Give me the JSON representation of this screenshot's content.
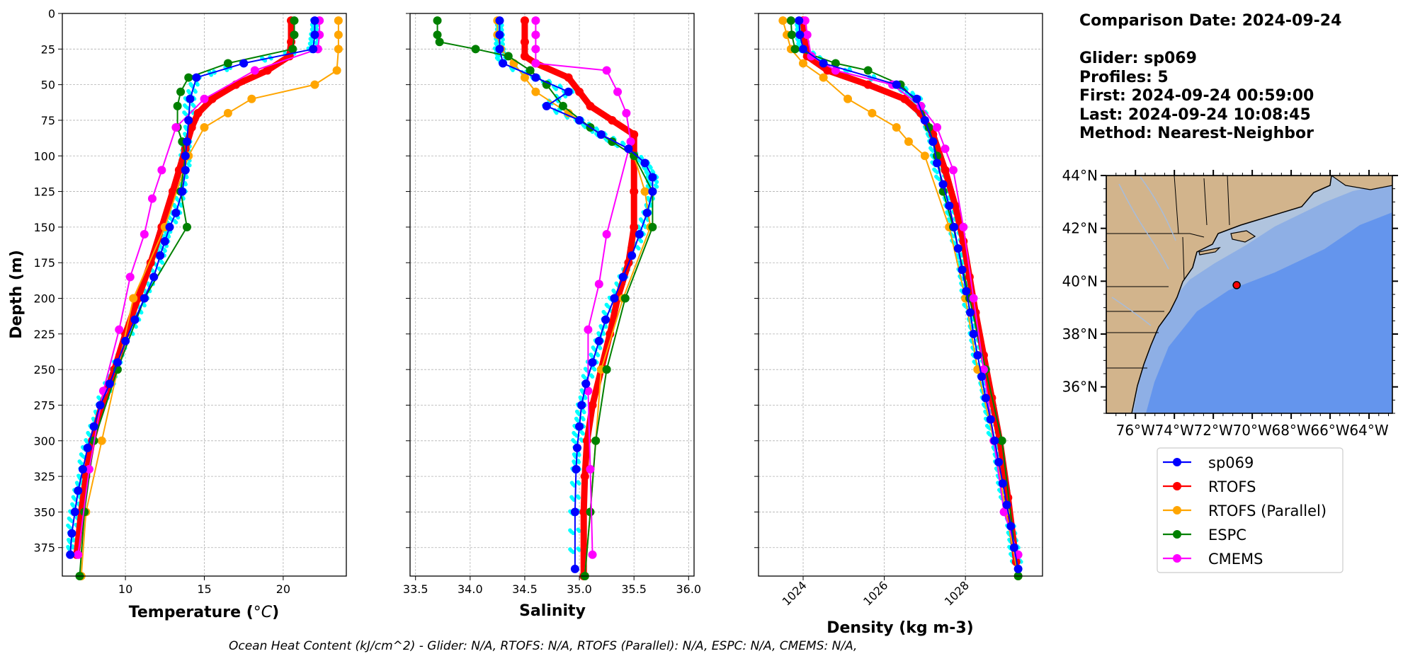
{
  "chart_data": [
    {
      "type": "line",
      "xlabel": "Temperature (°C)",
      "ylabel": "Depth (m)",
      "xlim": [
        6,
        24
      ],
      "ylim": [
        0,
        395
      ],
      "y_inverted": true,
      "xticks": [
        10,
        15,
        20
      ],
      "yticks": [
        0,
        25,
        50,
        75,
        100,
        125,
        150,
        175,
        200,
        225,
        250,
        275,
        300,
        325,
        350,
        375
      ],
      "grid": true,
      "series": [
        {
          "name": "sp069",
          "color": "#0000ff",
          "x": [
            22.0,
            22.0,
            21.9,
            17.5,
            14.5,
            14.1,
            14.0,
            13.9,
            13.8,
            13.8,
            13.6,
            13.2,
            12.8,
            12.5,
            12.2,
            11.8,
            11.2,
            10.6,
            10.0,
            9.5,
            9.0,
            8.4,
            8.0,
            7.6,
            7.3,
            7.0,
            6.8,
            6.6,
            6.5
          ],
          "y": [
            5,
            15,
            25,
            35,
            45,
            60,
            75,
            90,
            100,
            110,
            125,
            140,
            150,
            160,
            170,
            185,
            200,
            215,
            230,
            245,
            260,
            275,
            290,
            305,
            320,
            335,
            350,
            365,
            380
          ]
        },
        {
          "name": "RTOFS",
          "color": "#ff0000",
          "x": [
            20.5,
            20.5,
            20.4,
            19.0,
            17.0,
            15.5,
            14.6,
            14.2,
            13.8,
            13.4,
            13.0,
            12.3,
            11.6,
            10.8,
            10.0,
            9.3,
            8.5,
            7.9,
            7.5,
            7.2,
            6.9
          ],
          "y": [
            5,
            20,
            30,
            40,
            50,
            60,
            70,
            80,
            95,
            110,
            125,
            150,
            175,
            200,
            225,
            250,
            275,
            300,
            325,
            350,
            380
          ]
        },
        {
          "name": "RTOFS (Parallel)",
          "color": "#ffa500",
          "x": [
            23.5,
            23.5,
            23.5,
            23.4,
            22.0,
            18.0,
            16.5,
            15.0,
            14.0,
            12.5,
            10.5,
            8.5,
            7.5,
            7.2
          ],
          "y": [
            5,
            15,
            25,
            40,
            50,
            60,
            70,
            80,
            100,
            150,
            200,
            300,
            350,
            395
          ]
        },
        {
          "name": "ESPC",
          "color": "#008000",
          "x": [
            20.7,
            20.7,
            20.6,
            16.5,
            14.0,
            13.5,
            13.3,
            13.3,
            13.6,
            13.8,
            13.5,
            13.9,
            11.2,
            9.5,
            8.0,
            7.4,
            7.1
          ],
          "y": [
            5,
            15,
            25,
            35,
            45,
            55,
            65,
            80,
            90,
            100,
            125,
            150,
            200,
            250,
            300,
            350,
            395
          ]
        },
        {
          "name": "CMEMS",
          "color": "#ff00ff",
          "x": [
            22.3,
            22.3,
            22.2,
            18.2,
            15.0,
            13.2,
            12.3,
            11.7,
            11.2,
            10.3,
            9.6,
            8.6,
            7.7,
            7.0
          ],
          "y": [
            5,
            15,
            25,
            40,
            60,
            80,
            110,
            130,
            155,
            185,
            222,
            265,
            320,
            380
          ]
        }
      ]
    },
    {
      "type": "line",
      "xlabel": "Salinity",
      "xlim": [
        33.45,
        36.05
      ],
      "ylim": [
        0,
        395
      ],
      "y_inverted": true,
      "xticks": [
        33.5,
        34.0,
        34.5,
        35.0,
        35.5,
        36.0
      ],
      "grid": true,
      "series": [
        {
          "name": "sp069",
          "color": "#0000ff",
          "x": [
            34.27,
            34.27,
            34.27,
            34.3,
            34.6,
            34.9,
            34.7,
            35.0,
            35.2,
            35.45,
            35.6,
            35.67,
            35.67,
            35.62,
            35.55,
            35.48,
            35.4,
            35.32,
            35.24,
            35.18,
            35.12,
            35.06,
            35.02,
            35.0,
            34.98,
            34.97,
            34.96,
            34.96
          ],
          "y": [
            5,
            15,
            25,
            35,
            45,
            55,
            65,
            75,
            85,
            95,
            105,
            115,
            125,
            140,
            155,
            170,
            185,
            200,
            215,
            230,
            245,
            260,
            275,
            290,
            305,
            320,
            350,
            390
          ]
        },
        {
          "name": "RTOFS",
          "color": "#ff0000",
          "x": [
            34.5,
            34.5,
            34.5,
            34.6,
            34.9,
            35.0,
            35.1,
            35.3,
            35.5,
            35.5,
            35.5,
            35.5,
            35.45,
            35.35,
            35.28,
            35.2,
            35.12,
            35.07,
            35.05,
            35.04,
            35.04
          ],
          "y": [
            5,
            20,
            30,
            35,
            45,
            55,
            65,
            75,
            85,
            100,
            125,
            150,
            175,
            200,
            225,
            250,
            275,
            300,
            325,
            350,
            395
          ]
        },
        {
          "name": "RTOFS (Parallel)",
          "color": "#ffa500",
          "x": [
            34.25,
            34.25,
            34.28,
            34.4,
            34.5,
            34.6,
            34.9,
            35.2,
            35.5,
            35.6,
            35.65,
            35.4,
            35.2,
            35.15,
            35.1,
            35.05
          ],
          "y": [
            5,
            15,
            25,
            35,
            45,
            55,
            70,
            85,
            100,
            125,
            150,
            200,
            250,
            300,
            350,
            395
          ]
        },
        {
          "name": "ESPC",
          "color": "#008000",
          "x": [
            33.7,
            33.7,
            33.72,
            34.05,
            34.35,
            34.55,
            34.7,
            34.85,
            35.1,
            35.3,
            35.5,
            35.67,
            35.67,
            35.42,
            35.25,
            35.15,
            35.1,
            35.05
          ],
          "y": [
            5,
            15,
            20,
            25,
            30,
            40,
            50,
            65,
            80,
            90,
            100,
            125,
            150,
            200,
            250,
            300,
            350,
            395
          ]
        },
        {
          "name": "CMEMS",
          "color": "#ff00ff",
          "x": [
            34.6,
            34.6,
            34.6,
            34.6,
            35.25,
            35.35,
            35.43,
            35.47,
            35.25,
            35.18,
            35.08,
            35.08,
            35.1,
            35.12
          ],
          "y": [
            5,
            15,
            25,
            35,
            40,
            55,
            70,
            90,
            155,
            190,
            222,
            265,
            320,
            380
          ]
        }
      ]
    },
    {
      "type": "line",
      "xlabel": "Density (kg m-3)",
      "xlim": [
        1022.9,
        1029.9
      ],
      "ylim": [
        0,
        395
      ],
      "y_inverted": true,
      "xticks": [
        1024,
        1026,
        1028
      ],
      "grid": true,
      "series": [
        {
          "name": "sp069",
          "color": "#0000ff",
          "x": [
            1023.9,
            1023.92,
            1024.0,
            1024.5,
            1026.3,
            1026.8,
            1027.0,
            1027.2,
            1027.3,
            1027.45,
            1027.6,
            1027.72,
            1027.82,
            1027.92,
            1028.02,
            1028.12,
            1028.2,
            1028.3,
            1028.4,
            1028.5,
            1028.62,
            1028.72,
            1028.82,
            1028.92,
            1029.02,
            1029.12,
            1029.2,
            1029.3
          ],
          "y": [
            5,
            15,
            25,
            35,
            50,
            60,
            75,
            90,
            105,
            120,
            135,
            150,
            165,
            180,
            195,
            210,
            225,
            240,
            255,
            270,
            285,
            300,
            315,
            330,
            345,
            360,
            375,
            390
          ]
        },
        {
          "name": "RTOFS",
          "color": "#ff0000",
          "x": [
            1024.0,
            1024.05,
            1024.1,
            1024.6,
            1025.6,
            1026.5,
            1026.9,
            1027.2,
            1027.5,
            1027.75,
            1027.95,
            1028.1,
            1028.25,
            1028.45,
            1028.65,
            1028.85,
            1029.05,
            1029.25
          ],
          "y": [
            5,
            20,
            30,
            40,
            50,
            60,
            70,
            85,
            110,
            135,
            160,
            185,
            210,
            240,
            270,
            300,
            340,
            385
          ]
        },
        {
          "name": "RTOFS (Parallel)",
          "color": "#ffa500",
          "x": [
            1023.5,
            1023.6,
            1023.7,
            1024.0,
            1024.5,
            1025.1,
            1025.7,
            1026.3,
            1026.6,
            1027.0,
            1027.6,
            1028.0,
            1028.3,
            1028.7,
            1029.0,
            1029.3
          ],
          "y": [
            5,
            15,
            25,
            35,
            45,
            60,
            70,
            80,
            90,
            100,
            150,
            200,
            250,
            300,
            350,
            395
          ]
        },
        {
          "name": "ESPC",
          "color": "#008000",
          "x": [
            1023.7,
            1023.72,
            1023.8,
            1024.8,
            1025.6,
            1026.4,
            1026.9,
            1027.1,
            1027.2,
            1027.3,
            1027.45,
            1027.7,
            1028.1,
            1028.5,
            1028.9,
            1029.3
          ],
          "y": [
            5,
            15,
            25,
            35,
            40,
            50,
            65,
            80,
            90,
            100,
            125,
            150,
            200,
            250,
            300,
            395
          ]
        },
        {
          "name": "CMEMS",
          "color": "#ff00ff",
          "x": [
            1024.05,
            1024.1,
            1024.2,
            1024.8,
            1026.2,
            1026.9,
            1027.3,
            1027.5,
            1027.7,
            1027.95,
            1028.2,
            1028.45,
            1028.7,
            1028.95,
            1029.3
          ],
          "y": [
            5,
            15,
            30,
            40,
            50,
            65,
            80,
            95,
            110,
            150,
            200,
            250,
            300,
            350,
            380
          ]
        }
      ]
    }
  ],
  "info": {
    "comparison_date": "Comparison Date: 2024-09-24",
    "glider": "Glider: sp069",
    "profiles": "Profiles: 5",
    "first": "First: 2024-09-24 00:59:00",
    "last": "Last: 2024-09-24 10:08:45",
    "method": "Method: Nearest-Neighbor"
  },
  "map": {
    "lat_labels": [
      "44°N",
      "42°N",
      "40°N",
      "38°N",
      "36°N"
    ],
    "lon_labels": [
      "76°W",
      "74°W",
      "72°W",
      "70°W",
      "68°W",
      "66°W",
      "64°W"
    ],
    "glider_position": {
      "lon": -70.8,
      "lat": 39.85
    },
    "colors": {
      "land": "#d2b48c",
      "shelf": "#b0c4de",
      "slope": "#a3bde3",
      "deep": "#6495ed",
      "marker": "#ff0000"
    }
  },
  "legend": [
    "sp069",
    "RTOFS",
    "RTOFS (Parallel)",
    "ESPC",
    "CMEMS"
  ],
  "footer": "Ocean Heat Content (kJ/cm^2) - Glider: N/A,  RTOFS: N/A,  RTOFS (Parallel): N/A,  ESPC: N/A,  CMEMS: N/A,"
}
